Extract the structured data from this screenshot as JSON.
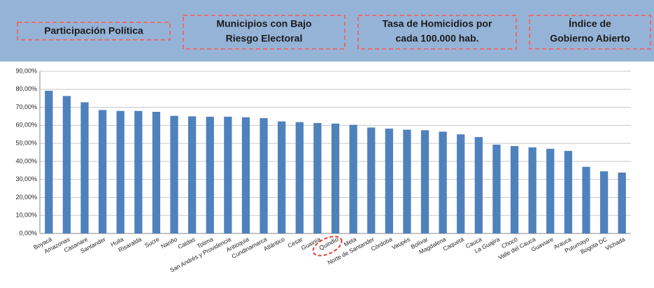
{
  "header": [
    [
      "Participación Política"
    ],
    [
      "Municipios con Bajo",
      "Riesgo Electoral"
    ],
    [
      "Tasa de Homicidios por",
      "cada 100.000 hab."
    ],
    [
      "Índice de",
      "Gobierno Abierto"
    ]
  ],
  "chart_data": {
    "type": "bar",
    "color": "#4f81bd",
    "grid": true,
    "categories": [
      "Boyacá",
      "Amazonas",
      "Casanare",
      "Santander",
      "Huila",
      "Risaralda",
      "Sucre",
      "Nariño",
      "Caldas",
      "Tolima",
      "San Andrés y Providencia",
      "Antioquia",
      "Cundinamarca",
      "Atlántico",
      "Cesar",
      "Guainía",
      "Quindío",
      "Meta",
      "Norte de Santander",
      "Córdoba",
      "Vaupés",
      "Bolívar",
      "Magdalena",
      "Caquetá",
      "Cauca",
      "La Guajira",
      "Chocó",
      "Valle del Cauca",
      "Guaviare",
      "Arauca",
      "Putumayo",
      "Bogota DC",
      "Vichada"
    ],
    "values": [
      79.2,
      76.3,
      72.8,
      68.5,
      68.0,
      68.0,
      67.5,
      65.3,
      65.0,
      64.8,
      64.8,
      64.5,
      64.0,
      62.2,
      61.8,
      61.3,
      61.0,
      60.3,
      58.8,
      58.2,
      57.6,
      57.3,
      56.5,
      55.0,
      53.5,
      49.3,
      48.5,
      47.8,
      47.0,
      45.8,
      37.0,
      34.5,
      33.8
    ],
    "ylim": [
      0,
      90
    ],
    "yticks": [
      {
        "value": 0,
        "label": "0,00%"
      },
      {
        "value": 10,
        "label": "10,00%"
      },
      {
        "value": 20,
        "label": "20,00%"
      },
      {
        "value": 30,
        "label": "30,00%"
      },
      {
        "value": 40,
        "label": "40,00%"
      },
      {
        "value": 50,
        "label": "50,00%"
      },
      {
        "value": 60,
        "label": "60,00%"
      },
      {
        "value": 70,
        "label": "70,00%"
      },
      {
        "value": 80,
        "label": "80,00%"
      },
      {
        "value": 90,
        "label": "90,00%"
      }
    ]
  }
}
